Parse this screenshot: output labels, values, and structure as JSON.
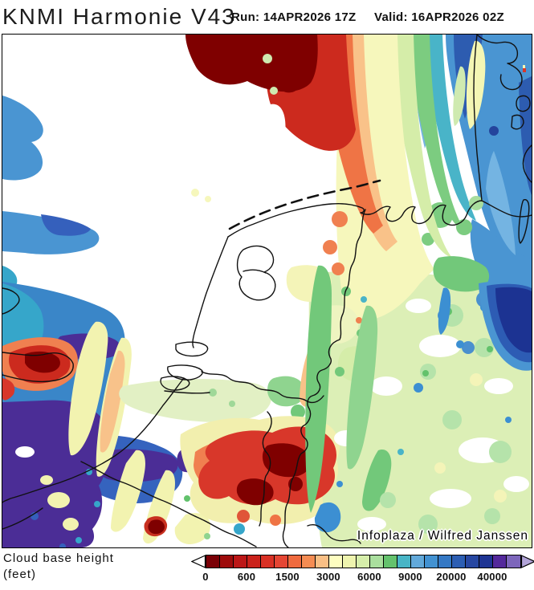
{
  "header": {
    "title": "KNMI Harmonie V43",
    "run_text": "Run: 14APR2026 17Z",
    "valid_text": "Valid: 16APR2026 02Z"
  },
  "map": {
    "attribution": "Infoplaza / Wilfred Janssen",
    "region": "Netherlands / Belgium / NW Germany / Denmark / SE England",
    "feature_colors": {
      "lowest_cloud_base": "#7a0006",
      "low_cloud": "#d93125",
      "mid_cloud": "#fdfdc0",
      "high_cloud": "#3478c4",
      "highest_cloud": "#53289b",
      "clear": "#ffffff"
    }
  },
  "legend": {
    "label_line1": "Cloud base height",
    "label_line2": "(feet)",
    "ticks": [
      "0",
      "600",
      "1500",
      "3000",
      "6000",
      "9000",
      "20000",
      "40000"
    ],
    "colors": [
      "#7a0006",
      "#9e0b0b",
      "#bc1717",
      "#ca221b",
      "#d93125",
      "#e54634",
      "#ef6a3e",
      "#f58c53",
      "#f9bf85",
      "#fdfdc0",
      "#eef4ae",
      "#d6eeaa",
      "#aadf9e",
      "#64c26d",
      "#48b5c6",
      "#62a9da",
      "#4292d2",
      "#3478c4",
      "#2c5eb3",
      "#2747a1",
      "#1e3493",
      "#53289b",
      "#7d66bb"
    ],
    "left_arrow_color": "#ffffff",
    "right_arrow_color": "#b2a4d8"
  }
}
